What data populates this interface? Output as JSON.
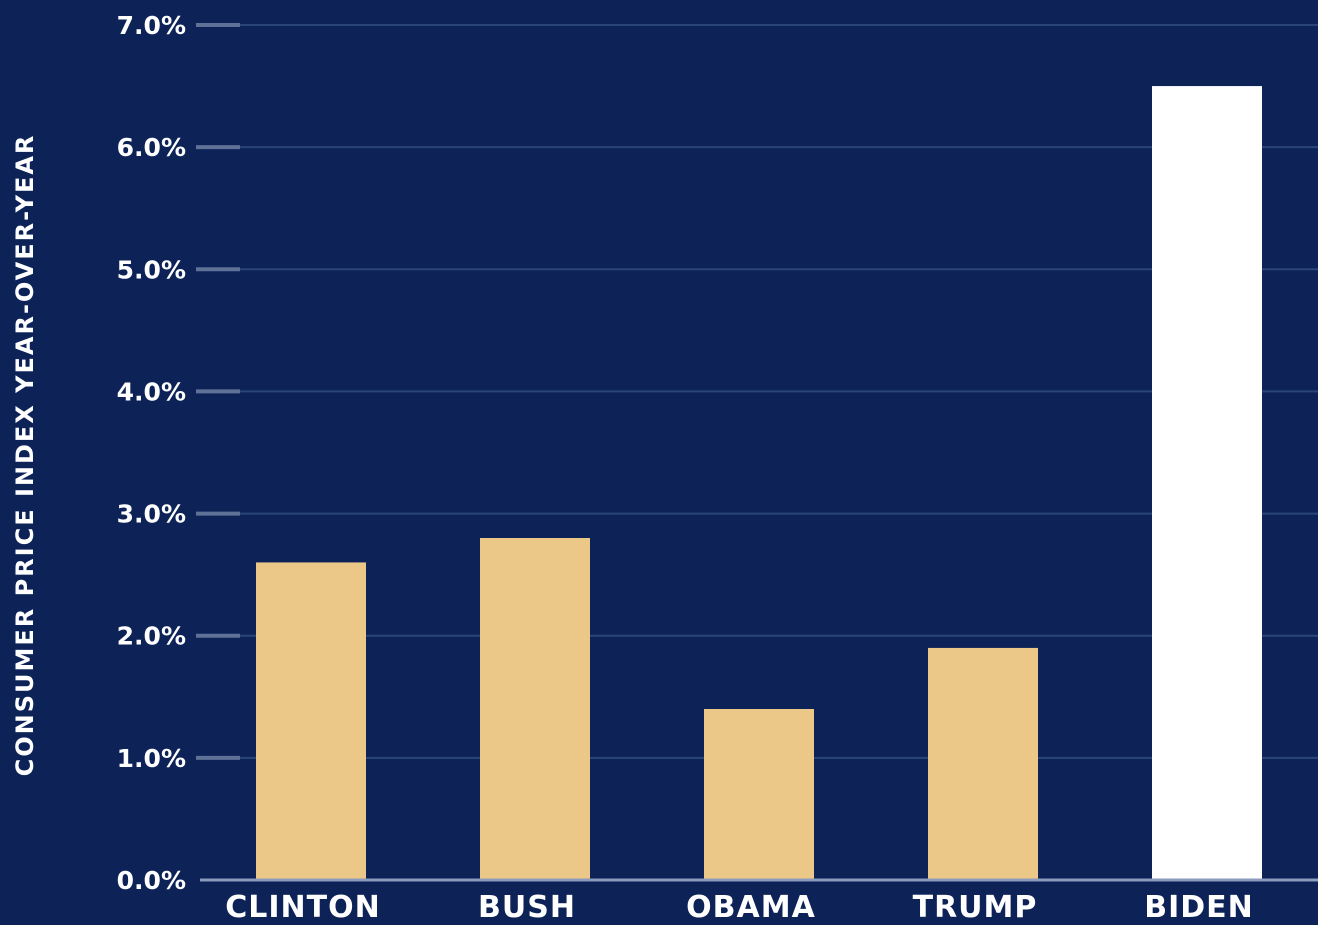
{
  "chart_data": {
    "type": "bar",
    "title": "",
    "xlabel": "",
    "ylabel": "CONSUMER PRICE INDEX YEAR-OVER-YEAR",
    "categories": [
      "CLINTON",
      "BUSH",
      "OBAMA",
      "TRUMP",
      "BIDEN"
    ],
    "values": [
      2.6,
      2.8,
      1.4,
      1.9,
      6.5
    ],
    "yticks": [
      "0.0%",
      "1.0%",
      "2.0%",
      "3.0%",
      "4.0%",
      "5.0%",
      "6.0%",
      "7.0%"
    ],
    "ylim": [
      0,
      7
    ],
    "grid": true,
    "legend": "none"
  },
  "colors": {
    "background": "#0d2358",
    "bar_default": "#ecc888",
    "bar_highlight": "#ffffff",
    "gridline": "#2b4477",
    "tick_mark": "#5f7196",
    "axis": "#8a9bbd",
    "text": "#ffffff"
  },
  "highlight_category": "BIDEN"
}
